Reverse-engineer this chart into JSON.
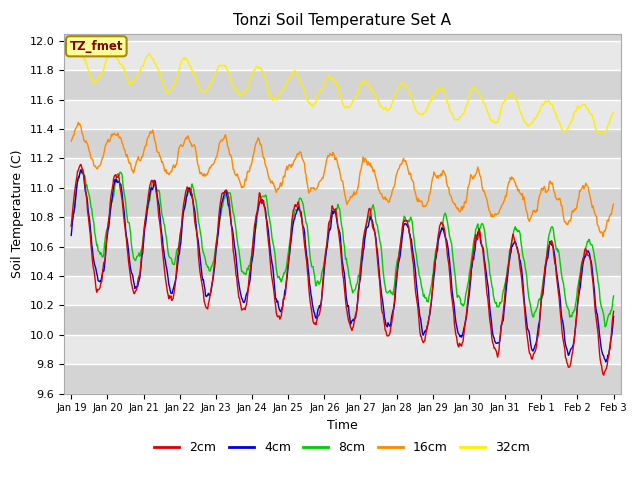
{
  "title": "Tonzi Soil Temperature Set A",
  "xlabel": "Time",
  "ylabel": "Soil Temperature (C)",
  "ylim": [
    9.6,
    12.05
  ],
  "colors": {
    "2cm": "#dd0000",
    "4cm": "#0000dd",
    "8cm": "#00cc00",
    "16cm": "#ff8800",
    "32cm": "#ffee00"
  },
  "annotation_label": "TZ_fmet",
  "annotation_color": "#880000",
  "annotation_bg": "#ffff99",
  "annotation_border": "#aa8800",
  "fig_bg": "#e8e8e8",
  "plot_bg": "#e8e8e8",
  "legend_bg": "#ffffff",
  "band_dark": "#d0d0d0",
  "tick_labels": [
    "Jan 19",
    "Jan 20",
    "Jan 21",
    "Jan 22",
    "Jan 23",
    "Jan 24",
    "Jan 25",
    "Jan 26",
    "Jan 27",
    "Jan 28",
    "Jan 29",
    "Jan 30",
    "Jan 31",
    "Feb 1",
    "Feb 2",
    "Feb 3"
  ]
}
